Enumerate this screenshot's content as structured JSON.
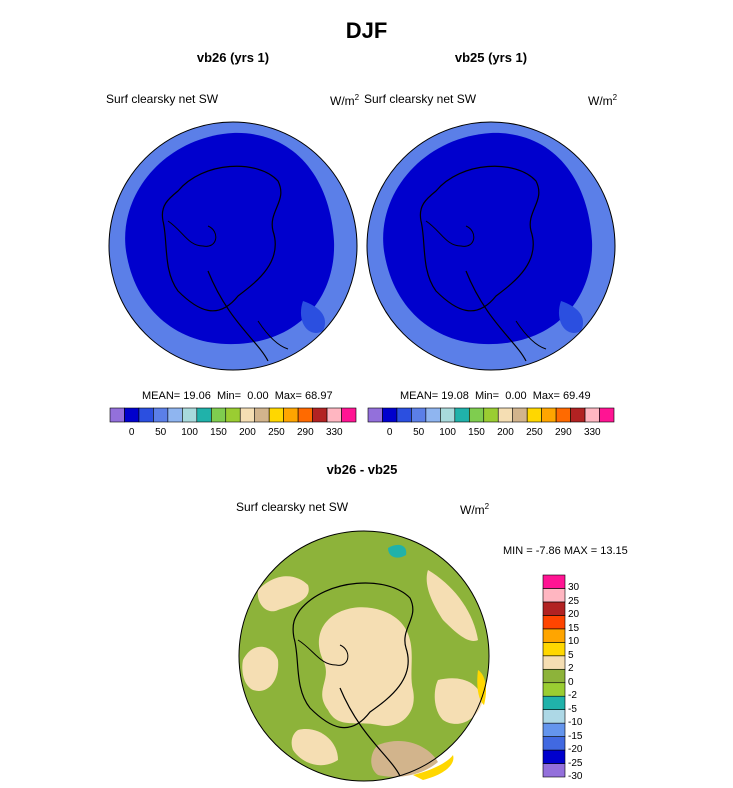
{
  "page": {
    "title": "DJF"
  },
  "palette": {
    "abs": [
      "#9370db",
      "#0000cd",
      "#2b4fe0",
      "#5b7fe8",
      "#8fb5f0",
      "#a8dadc",
      "#20b2aa",
      "#7fcd4f",
      "#9acd32",
      "#f5deb3",
      "#d2b48c",
      "#ffd700",
      "#ffa500",
      "#ff6a00",
      "#b22222",
      "#ffb6c1",
      "#ff1493"
    ],
    "diff": [
      "#9370db",
      "#0000cd",
      "#4169e1",
      "#6495ed",
      "#add8e6",
      "#20b2aa",
      "#9acd32",
      "#8db33a",
      "#f5deb3",
      "#ffd700",
      "#ffa500",
      "#ff4500",
      "#b22222",
      "#ffb6c1",
      "#ff1493"
    ]
  },
  "chart_data": [
    {
      "type": "heatmap",
      "id": "vb26",
      "title": "vb26 (yrs 1)",
      "variable": "Surf clearsky net SW",
      "units_base": "W/m",
      "units_exp": "2",
      "stats": {
        "mean_label": "MEAN=",
        "mean": "19.06",
        "min_label": "Min=",
        "min": "0.00",
        "max_label": "Max=",
        "max": "68.97"
      },
      "colorbar_ticks": [
        "0",
        "50",
        "100",
        "150",
        "200",
        "250",
        "290",
        "330"
      ]
    },
    {
      "type": "heatmap",
      "id": "vb25",
      "title": "vb25 (yrs 1)",
      "variable": "Surf clearsky net SW",
      "units_base": "W/m",
      "units_exp": "2",
      "stats": {
        "mean_label": "MEAN=",
        "mean": "19.08",
        "min_label": "Min=",
        "min": "0.00",
        "max_label": "Max=",
        "max": "69.49"
      },
      "colorbar_ticks": [
        "0",
        "50",
        "100",
        "150",
        "200",
        "250",
        "290",
        "330"
      ]
    },
    {
      "type": "heatmap",
      "id": "diff",
      "title": "vb26 - vb25",
      "variable": "Surf clearsky net SW",
      "units_base": "W/m",
      "units_exp": "2",
      "stats": {
        "min_label": "MIN =",
        "min": "-7.86",
        "max_label": "MAX =",
        "max": "13.15"
      },
      "colorbar_ticks": [
        "30",
        "25",
        "20",
        "15",
        "10",
        "5",
        "2",
        "0",
        "-2",
        "-5",
        "-10",
        "-15",
        "-20",
        "-25",
        "-30"
      ]
    }
  ]
}
